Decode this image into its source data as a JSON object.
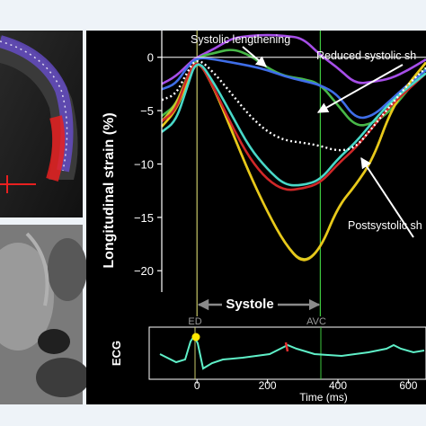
{
  "colors": {
    "background": "#000000",
    "axis": "#ffffff",
    "ed_line": "#c8c86a",
    "avc_line": "#3ec83e",
    "arrow": "#ffffff",
    "ecg_trace": "#5ff0c8",
    "ecg_ed_marker": "#ffe800",
    "ecg_avc_marker": "#e83030",
    "systole_arrow": "#8a8a8a"
  },
  "chart_data": {
    "type": "line",
    "ylabel": "Longitudinal strain (%)",
    "xlabel": "Time (ms)",
    "x_ticks": [
      "0",
      "200",
      "400",
      "600"
    ],
    "y_ticks": [
      "0",
      "−5",
      "−10",
      "−15",
      "−20"
    ],
    "xlim": [
      -100,
      650
    ],
    "ylim": [
      -22,
      2.5
    ],
    "grid": false,
    "markers": {
      "ed": {
        "label": "ED",
        "x": 0
      },
      "avc": {
        "label": "AVC",
        "x": 350
      }
    },
    "systole_label": "Systole",
    "ecg_label": "ECG",
    "annotations": [
      {
        "text": "Systolic lengthening",
        "points_to": [
          200,
          2.0
        ]
      },
      {
        "text": "Reduced systolic sh",
        "points_to": [
          350,
          -2.5
        ]
      },
      {
        "text": "Postsystolic sh",
        "points_to": [
          460,
          -7.0
        ]
      }
    ],
    "series": [
      {
        "color": "#a64ee8",
        "x": [
          -100,
          -60,
          -20,
          0,
          50,
          100,
          150,
          200,
          250,
          300,
          350,
          400,
          450,
          500,
          550,
          600,
          650
        ],
        "y": [
          -2.5,
          -1.8,
          -0.5,
          0,
          0.8,
          1.8,
          2.0,
          2.1,
          2.0,
          1.8,
          0.2,
          -1.0,
          -2.5,
          -2.3,
          -2.0,
          -1.2,
          -0.2
        ]
      },
      {
        "color": "#48b848",
        "x": [
          -100,
          -60,
          -30,
          0,
          50,
          100,
          150,
          200,
          250,
          300,
          350,
          400,
          450,
          500,
          550,
          600,
          650
        ],
        "y": [
          -5.5,
          -4.5,
          -2.0,
          0,
          0.4,
          0.8,
          0.2,
          -1.0,
          -1.8,
          -2.0,
          -2.5,
          -4.5,
          -6.5,
          -6.2,
          -5.0,
          -3.0,
          -1.0
        ]
      },
      {
        "color": "#3f6ee8",
        "x": [
          -100,
          -60,
          -30,
          0,
          50,
          100,
          150,
          200,
          250,
          300,
          350,
          400,
          450,
          500,
          550,
          600,
          650
        ],
        "y": [
          -3.0,
          -2.5,
          -1.0,
          0,
          -0.2,
          -0.5,
          -0.8,
          -1.2,
          -1.8,
          -2.2,
          -2.6,
          -3.5,
          -5.8,
          -5.5,
          -4.0,
          -2.5,
          -1.2
        ]
      },
      {
        "color": "#c8c82a",
        "x": [
          -100,
          -60,
          -30,
          0,
          50,
          100,
          150,
          200,
          250,
          300,
          350,
          400,
          450,
          500,
          550,
          600,
          650
        ],
        "y": [
          -6.0,
          -4.5,
          -2.0,
          0,
          -3.0,
          -7.0,
          -11.0,
          -14.5,
          -17.5,
          -19.3,
          -18.0,
          -14.0,
          -12.0,
          -9.5,
          -5.0,
          -2.5,
          -0.5
        ]
      },
      {
        "color": "#e8c81a",
        "x": [
          -100,
          -60,
          -30,
          0,
          50,
          100,
          150,
          200,
          250,
          300,
          350,
          400,
          450,
          500,
          550,
          600,
          650
        ],
        "y": [
          -6.5,
          -5.0,
          -2.5,
          0,
          -3.0,
          -7.0,
          -11.0,
          -14.5,
          -17.5,
          -19.4,
          -18.0,
          -14.0,
          -12.0,
          -9.5,
          -5.0,
          -2.5,
          -0.5
        ]
      },
      {
        "color": "#d02828",
        "x": [
          -100,
          -60,
          -30,
          0,
          50,
          100,
          150,
          200,
          250,
          300,
          350,
          400,
          450,
          500,
          550,
          600,
          650
        ],
        "y": [
          -6.0,
          -5.0,
          -2.0,
          0,
          -3.0,
          -6.5,
          -9.5,
          -11.5,
          -12.5,
          -12.3,
          -11.8,
          -10.0,
          -8.5,
          -6.5,
          -4.5,
          -3.0,
          -1.5
        ]
      },
      {
        "color": "#48d8c8",
        "x": [
          -100,
          -60,
          -30,
          0,
          50,
          100,
          150,
          200,
          250,
          300,
          350,
          400,
          450,
          500,
          550,
          600,
          650
        ],
        "y": [
          -7.0,
          -6.0,
          -3.0,
          0,
          -2.5,
          -5.5,
          -8.5,
          -10.5,
          -12.0,
          -12.0,
          -11.5,
          -9.5,
          -8.0,
          -6.0,
          -4.2,
          -2.8,
          -1.5
        ]
      },
      {
        "color": "#ffffff",
        "dashed": true,
        "x": [
          -100,
          -60,
          -30,
          0,
          50,
          100,
          150,
          200,
          250,
          300,
          350,
          400,
          450,
          500,
          550,
          600,
          650
        ],
        "y": [
          -4.0,
          -3.5,
          -1.5,
          0,
          -1.5,
          -3.5,
          -5.5,
          -7.0,
          -7.8,
          -8.0,
          -8.3,
          -8.8,
          -8.5,
          -6.5,
          -4.5,
          -2.5,
          -1.0
        ]
      }
    ]
  }
}
